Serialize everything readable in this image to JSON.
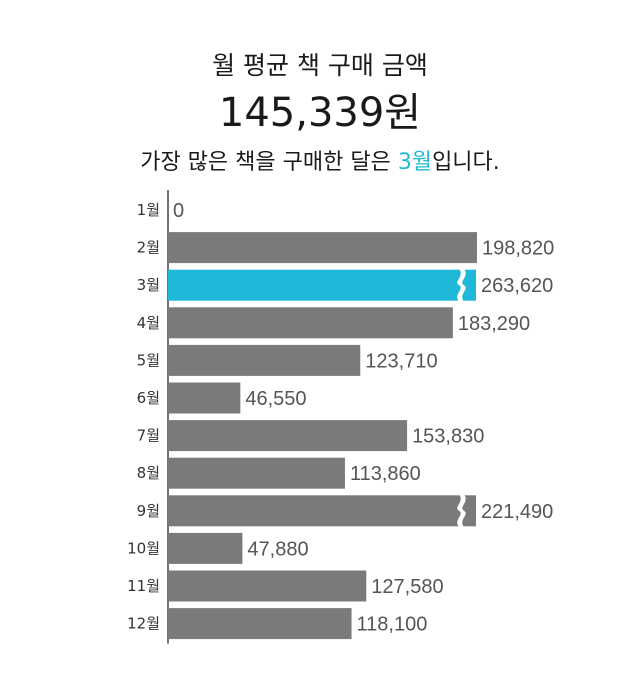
{
  "header": {
    "title": "월 평균 책 구매 금액",
    "amount": "145,339원",
    "subtitle_pre": "가장 많은 책을 구매한 달은 ",
    "subtitle_highlight": "3월",
    "subtitle_post": "입니다."
  },
  "colors": {
    "bar": "#7a7a7a",
    "highlight": "#1fb8d8",
    "axis": "#444444"
  },
  "chart_data": {
    "type": "bar",
    "orientation": "horizontal",
    "categories": [
      "1월",
      "2월",
      "3월",
      "4월",
      "5월",
      "6월",
      "7월",
      "8월",
      "9월",
      "10월",
      "11월",
      "12월"
    ],
    "values": [
      0,
      198820,
      263620,
      183290,
      123710,
      46550,
      153830,
      113860,
      221490,
      47880,
      127580,
      118100
    ],
    "value_labels": [
      "0",
      "198,820",
      "263,620",
      "183,290",
      "123,710",
      "46,550",
      "153,830",
      "113,860",
      "221,490",
      "47,880",
      "127,580",
      "118,100"
    ],
    "highlight_index": 2,
    "axis_break_indices": [
      2,
      8
    ],
    "title": "월 평균 책 구매 금액",
    "xlabel": "",
    "ylabel": "",
    "grid": false,
    "legend": "none"
  }
}
